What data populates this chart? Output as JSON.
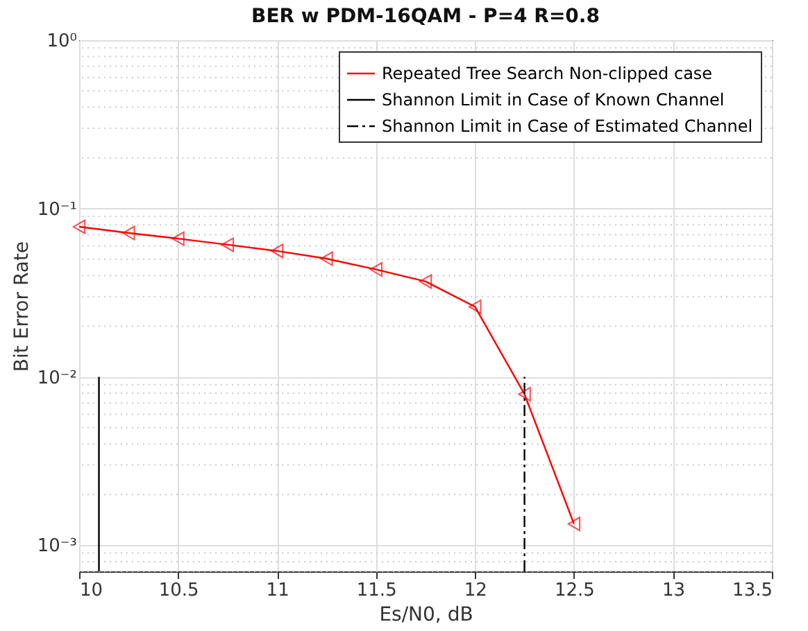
{
  "chart_data": {
    "type": "line",
    "title": "BER w PDM-16QAM - P=4 R=0.8",
    "xlabel": "Es/N0, dB",
    "ylabel": "Bit Error Rate",
    "log": "y",
    "grid": true,
    "legend": "top right",
    "xlim": [
      10,
      13.5
    ],
    "xticks": [
      10,
      10.5,
      11,
      11.5,
      12,
      12.5,
      13,
      13.5
    ],
    "ylim": [
      0.0007,
      1
    ],
    "yticks": [
      {
        "value": 0.001,
        "label": "10⁻³"
      },
      {
        "value": 0.01,
        "label": "10⁻²"
      },
      {
        "value": 0.1,
        "label": "10⁻¹"
      },
      {
        "value": 1,
        "label": "10⁰"
      }
    ],
    "series": [
      {
        "name": "Repeated Tree Search Non-clipped case",
        "color": "#ff0000",
        "marker": "triangle",
        "line_style": "solid",
        "x": [
          10,
          10.25,
          10.5,
          10.75,
          11,
          11.25,
          11.5,
          11.75,
          12,
          12.25,
          12.5
        ],
        "values": [
          0.078,
          0.0716,
          0.0663,
          0.061,
          0.056,
          0.0504,
          0.0435,
          0.0369,
          0.0261,
          0.0079,
          0.00134
        ]
      },
      {
        "name": "Shannon Limit in Case of Known Channel",
        "color": "#000000",
        "marker": "none",
        "line_style": "solid",
        "x": [
          10.1,
          10.1
        ],
        "values": [
          0.0007,
          0.01
        ]
      },
      {
        "name": "Shannon Limit in Case of Estimated Channel",
        "color": "#000000",
        "marker": "none",
        "line_style": "dashed",
        "x": [
          12.25,
          12.25
        ],
        "values": [
          0.0007,
          0.01
        ]
      }
    ]
  }
}
